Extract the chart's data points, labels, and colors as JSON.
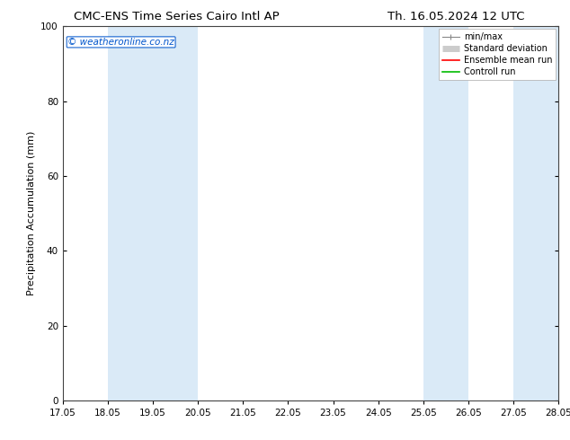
{
  "title_left": "CMC-ENS Time Series Cairo Intl AP",
  "title_right": "Th. 16.05.2024 12 UTC",
  "ylabel": "Precipitation Accumulation (mm)",
  "watermark": "© weatheronline.co.nz",
  "ylim": [
    0,
    100
  ],
  "yticks": [
    0,
    20,
    40,
    60,
    80,
    100
  ],
  "xtick_labels": [
    "17.05",
    "18.05",
    "19.05",
    "20.05",
    "21.05",
    "22.05",
    "23.05",
    "24.05",
    "25.05",
    "26.05",
    "27.05",
    "28.05"
  ],
  "xtick_positions": [
    0,
    1,
    2,
    3,
    4,
    5,
    6,
    7,
    8,
    9,
    10,
    11
  ],
  "shaded_regions": [
    {
      "xmin": 1,
      "xmax": 3,
      "color": "#daeaf7"
    },
    {
      "xmin": 8,
      "xmax": 9,
      "color": "#daeaf7"
    },
    {
      "xmin": 10,
      "xmax": 12,
      "color": "#daeaf7"
    }
  ],
  "bg_color": "#ffffff",
  "plot_bg_color": "#ffffff",
  "title_fontsize": 9.5,
  "axis_label_fontsize": 8,
  "tick_fontsize": 7.5,
  "watermark_color": "#0055cc",
  "legend_fontsize": 7
}
